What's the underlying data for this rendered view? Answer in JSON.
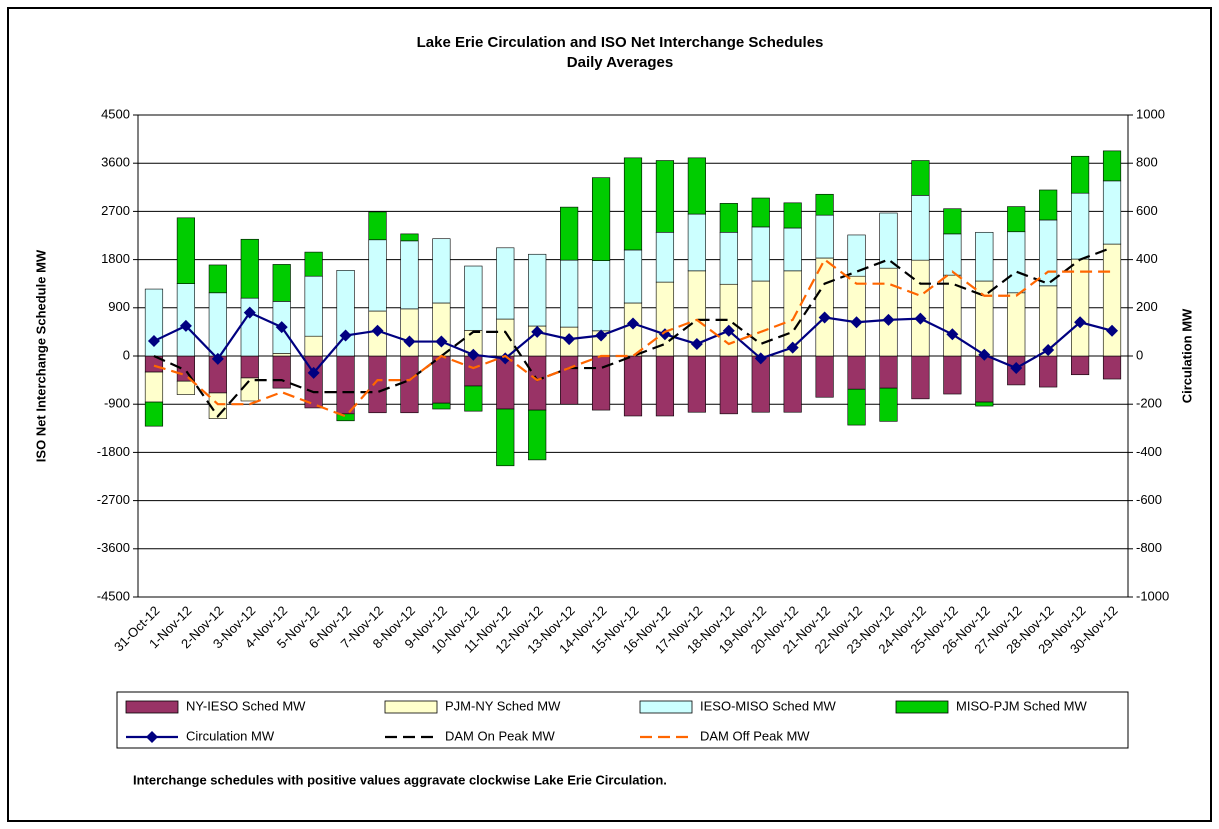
{
  "chart_data": {
    "type": "bar",
    "title": "Lake Erie Circulation and ISO Net Interchange Schedules",
    "subtitle": "Daily Averages",
    "ylabel": "ISO Net Interchange Schedule MW",
    "y2label": "Circulation MW",
    "note": "Interchange schedules with positive values aggravate clockwise Lake Erie Circulation.",
    "stacked": true,
    "categories": [
      "31-Oct-12",
      "1-Nov-12",
      "2-Nov-12",
      "3-Nov-12",
      "4-Nov-12",
      "5-Nov-12",
      "6-Nov-12",
      "7-Nov-12",
      "8-Nov-12",
      "9-Nov-12",
      "10-Nov-12",
      "11-Nov-12",
      "12-Nov-12",
      "13-Nov-12",
      "14-Nov-12",
      "15-Nov-12",
      "16-Nov-12",
      "17-Nov-12",
      "18-Nov-12",
      "19-Nov-12",
      "20-Nov-12",
      "21-Nov-12",
      "22-Nov-12",
      "23-Nov-12",
      "24-Nov-12",
      "25-Nov-12",
      "26-Nov-12",
      "27-Nov-12",
      "28-Nov-12",
      "29-Nov-12",
      "30-Nov-12"
    ],
    "ylim": [
      -4500,
      4500
    ],
    "yticks": [
      -4500,
      -3600,
      -2700,
      -1800,
      -900,
      0,
      900,
      1800,
      2700,
      3600,
      4500
    ],
    "y2lim": [
      -1000,
      1000
    ],
    "y2ticks": [
      -1000,
      -800,
      -600,
      -400,
      -200,
      0,
      200,
      400,
      600,
      800,
      1000
    ],
    "grid": true,
    "series": [
      {
        "name": "NY-IESO Sched MW",
        "type": "bar",
        "color": "#993366",
        "values": [
          -300,
          -470,
          -690,
          -410,
          -600,
          -970,
          -1080,
          -1060,
          -1060,
          -880,
          -560,
          -990,
          -1010,
          -900,
          -1010,
          -1120,
          -1120,
          -1050,
          -1080,
          -1050,
          -1050,
          -770,
          -620,
          -600,
          -800,
          -710,
          -860,
          -540,
          -580,
          -350,
          -430
        ]
      },
      {
        "name": "PJM-NY Sched MW",
        "type": "bar",
        "color": "#ffffcc",
        "values": [
          -560,
          -250,
          -480,
          -430,
          50,
          370,
          0,
          840,
          880,
          990,
          480,
          690,
          560,
          540,
          470,
          990,
          1380,
          1590,
          1340,
          1400,
          1590,
          1830,
          1490,
          1640,
          1790,
          1510,
          1400,
          1180,
          1310,
          1810,
          2090
        ]
      },
      {
        "name": "IESO-MISO Sched MW",
        "type": "bar",
        "color": "#ccffff",
        "values": [
          1250,
          1350,
          1180,
          1080,
          970,
          1120,
          1600,
          1330,
          1270,
          1200,
          1200,
          1330,
          1340,
          1250,
          1310,
          990,
          930,
          1060,
          970,
          1010,
          800,
          800,
          770,
          1030,
          1210,
          770,
          910,
          1140,
          1230,
          1230,
          1180
        ]
      },
      {
        "name": "MISO-PJM Sched MW",
        "type": "bar",
        "color": "#00cc00",
        "values": [
          -450,
          1230,
          520,
          1100,
          690,
          450,
          -130,
          520,
          130,
          -110,
          -470,
          -1060,
          -930,
          990,
          1550,
          1720,
          1340,
          1050,
          540,
          540,
          470,
          390,
          -670,
          -620,
          650,
          470,
          -75,
          470,
          560,
          690,
          560
        ]
      },
      {
        "name": "Circulation MW",
        "type": "line",
        "axis": "y2",
        "color": "#000080",
        "marker": "diamond",
        "values": [
          62,
          125,
          -12,
          180,
          120,
          -70,
          85,
          105,
          60,
          60,
          5,
          -10,
          100,
          70,
          85,
          135,
          90,
          50,
          105,
          -10,
          35,
          160,
          140,
          150,
          155,
          90,
          5,
          -50,
          25,
          140,
          105
        ]
      },
      {
        "name": "DAM On Peak MW",
        "type": "line",
        "axis": "y2",
        "color": "#000000",
        "dashed": true,
        "values": [
          0,
          -60,
          -250,
          -100,
          -100,
          -150,
          -150,
          -150,
          -100,
          0,
          100,
          100,
          -100,
          -50,
          -50,
          0,
          50,
          150,
          150,
          50,
          100,
          300,
          350,
          400,
          300,
          300,
          250,
          350,
          300,
          400,
          450
        ]
      },
      {
        "name": "DAM Off Peak MW",
        "type": "line",
        "axis": "y2",
        "color": "#ff6600",
        "dashed": true,
        "values": [
          -40,
          -80,
          -200,
          -200,
          -150,
          -200,
          -250,
          -100,
          -100,
          0,
          -50,
          0,
          -100,
          -50,
          0,
          0,
          100,
          150,
          50,
          100,
          150,
          400,
          300,
          300,
          250,
          350,
          250,
          250,
          350,
          350,
          350
        ]
      }
    ]
  }
}
